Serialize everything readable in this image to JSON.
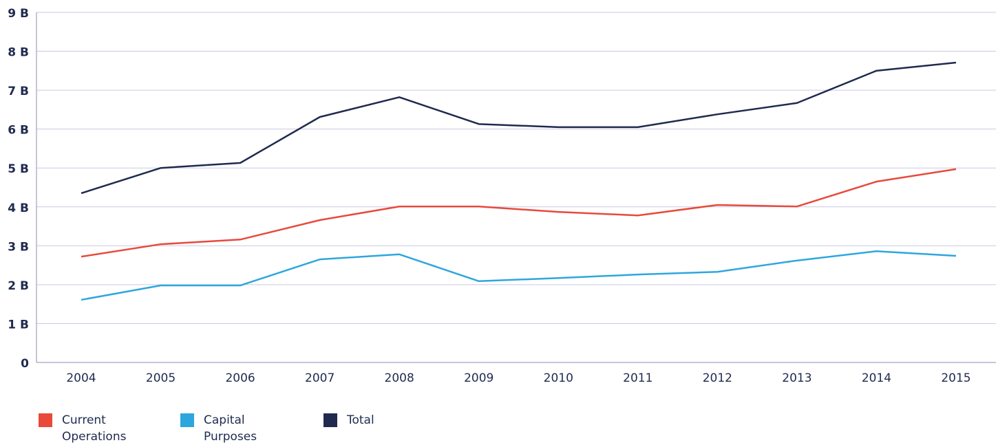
{
  "chart_data": {
    "type": "line",
    "categories": [
      "2004",
      "2005",
      "2006",
      "2007",
      "2008",
      "2009",
      "2010",
      "2011",
      "2012",
      "2013",
      "2014",
      "2015"
    ],
    "series": [
      {
        "name": "Current Operations",
        "color": "#e8493b",
        "values": [
          2.72,
          3.04,
          3.16,
          3.66,
          4.01,
          4.01,
          3.87,
          3.78,
          4.05,
          4.01,
          4.65,
          4.97
        ]
      },
      {
        "name": "Capital Purposes",
        "color": "#2ea6dd",
        "values": [
          1.61,
          1.98,
          1.98,
          2.65,
          2.78,
          2.09,
          2.17,
          2.26,
          2.33,
          2.62,
          2.86,
          2.74
        ]
      },
      {
        "name": "Total",
        "color": "#1f2a4f",
        "values": [
          4.35,
          5.0,
          5.13,
          6.31,
          6.82,
          6.13,
          6.05,
          6.05,
          6.38,
          6.67,
          7.5,
          7.71
        ]
      }
    ],
    "ylim": [
      0,
      9
    ],
    "yticks": [
      0,
      {
        "value": 1,
        "label": "1 B"
      },
      {
        "value": 2,
        "label": "2 B"
      },
      {
        "value": 3,
        "label": "3 B"
      },
      {
        "value": 4,
        "label": "4 B"
      },
      {
        "value": 5,
        "label": "5 B"
      },
      {
        "value": 6,
        "label": "6 B"
      },
      {
        "value": 7,
        "label": "7 B"
      },
      {
        "value": 8,
        "label": "8 B"
      },
      {
        "value": 9,
        "label": "9 B"
      }
    ],
    "grid": true
  }
}
